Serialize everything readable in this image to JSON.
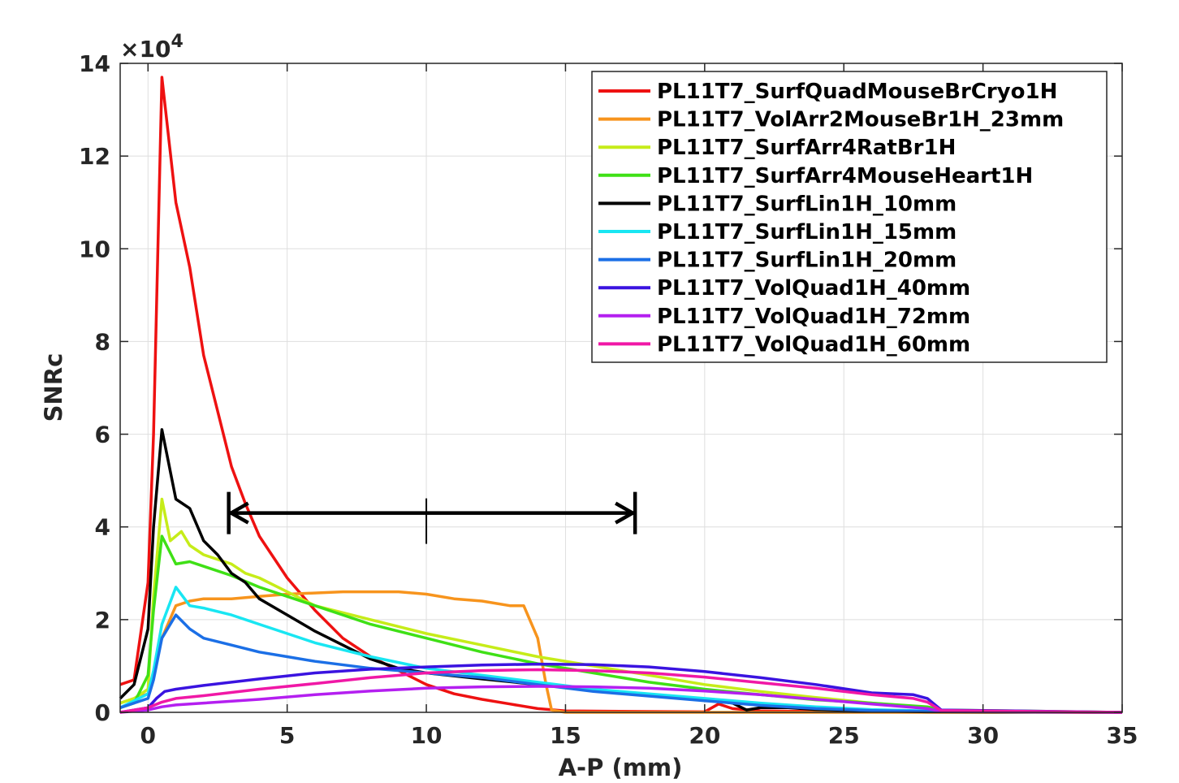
{
  "chart_data": {
    "type": "line",
    "xlabel": "A-P (mm)",
    "ylabel": "SNRc",
    "y_multiplier": "×10",
    "y_multiplier_exp": "4",
    "xlim": [
      -1,
      35
    ],
    "ylim": [
      0,
      14
    ],
    "xticks": [
      0,
      5,
      10,
      15,
      20,
      25,
      30,
      35
    ],
    "yticks": [
      0,
      2,
      4,
      6,
      8,
      10,
      12,
      14
    ],
    "grid": true,
    "legend_position": "top-right",
    "annotation": {
      "type": "double-arrow",
      "x_start": 2.9,
      "x_end": 17.5,
      "x_mid": 10,
      "y": 4.3
    },
    "series": [
      {
        "name": "PL11T7_SurfQuadMouseBrCryo1H",
        "color": "#ee1111",
        "x": [
          -1,
          -0.5,
          0,
          0.2,
          0.5,
          1,
          1.5,
          2,
          2.5,
          3,
          3.5,
          4,
          5,
          6,
          7,
          8,
          9,
          10,
          11,
          12,
          13,
          14,
          15,
          20,
          20.5,
          21,
          22,
          25,
          28,
          35
        ],
        "y": [
          0.6,
          0.7,
          2.8,
          6,
          13.7,
          11,
          9.6,
          7.7,
          6.5,
          5.3,
          4.5,
          3.8,
          2.9,
          2.2,
          1.6,
          1.2,
          0.9,
          0.6,
          0.4,
          0.28,
          0.18,
          0.08,
          0.03,
          0.01,
          0.18,
          0.08,
          0.03,
          0.01,
          0.01,
          0.0
        ]
      },
      {
        "name": "PL11T7_VolArr2MouseBr1H_23mm",
        "color": "#f7941d",
        "x": [
          -1,
          0,
          0.5,
          1,
          1.5,
          2,
          3,
          4,
          5,
          7,
          9,
          10,
          11,
          12,
          13,
          13.5,
          14,
          14.3,
          14.5,
          15,
          20,
          35
        ],
        "y": [
          0.2,
          0.4,
          1.6,
          2.3,
          2.4,
          2.45,
          2.45,
          2.5,
          2.55,
          2.6,
          2.6,
          2.55,
          2.45,
          2.4,
          2.3,
          2.3,
          1.6,
          0.6,
          0.05,
          0.0,
          0.0,
          0.0
        ]
      },
      {
        "name": "PL11T7_SurfArr4RatBr1H",
        "color": "#c6ec19",
        "x": [
          -1,
          -0.5,
          0,
          0.2,
          0.5,
          0.8,
          1.2,
          1.5,
          2,
          2.5,
          3,
          3.5,
          4,
          5,
          6,
          7,
          8,
          9,
          10,
          12,
          14,
          16,
          18,
          20,
          22,
          24,
          26,
          28,
          28.5,
          29,
          35
        ],
        "y": [
          0.2,
          0.3,
          0.5,
          2.5,
          4.6,
          3.7,
          3.9,
          3.6,
          3.4,
          3.3,
          3.2,
          3.0,
          2.9,
          2.6,
          2.3,
          2.15,
          2.0,
          1.85,
          1.7,
          1.45,
          1.2,
          1.0,
          0.8,
          0.6,
          0.45,
          0.32,
          0.2,
          0.1,
          0.05,
          0.02,
          0.0
        ]
      },
      {
        "name": "PL11T7_SurfArr4MouseHeart1H",
        "color": "#3fe016",
        "x": [
          -1,
          -0.5,
          0,
          0.2,
          0.5,
          1,
          1.5,
          2,
          3,
          4,
          5,
          6,
          7,
          8,
          10,
          12,
          14,
          16,
          18,
          20,
          22,
          24,
          26,
          28,
          28.5,
          35
        ],
        "y": [
          0.1,
          0.2,
          0.8,
          2.2,
          3.8,
          3.2,
          3.25,
          3.15,
          2.95,
          2.7,
          2.5,
          2.3,
          2.1,
          1.9,
          1.6,
          1.3,
          1.05,
          0.85,
          0.65,
          0.5,
          0.38,
          0.27,
          0.2,
          0.12,
          0.05,
          0.0
        ]
      },
      {
        "name": "PL11T7_SurfLin1H_10mm",
        "color": "#000000",
        "x": [
          -1,
          -0.5,
          0,
          0.2,
          0.5,
          1,
          1.5,
          2,
          2.5,
          3,
          3.5,
          4,
          5,
          6,
          7,
          8,
          9,
          10,
          12,
          14,
          16,
          18,
          20,
          21,
          21.5,
          22,
          23,
          24,
          26,
          28,
          35
        ],
        "y": [
          0.3,
          0.6,
          1.8,
          4.0,
          6.1,
          4.6,
          4.4,
          3.7,
          3.4,
          3.0,
          2.8,
          2.45,
          2.1,
          1.75,
          1.45,
          1.15,
          0.95,
          0.85,
          0.72,
          0.6,
          0.48,
          0.38,
          0.28,
          0.2,
          0.05,
          0.1,
          0.1,
          0.06,
          0.03,
          0.01,
          0.0
        ]
      },
      {
        "name": "PL11T7_SurfLin1H_15mm",
        "color": "#19e6f2",
        "x": [
          -1,
          0,
          0.2,
          0.5,
          1,
          1.5,
          2,
          3,
          4,
          5,
          6,
          8,
          10,
          12,
          14,
          16,
          18,
          20,
          22,
          24,
          26,
          28,
          35
        ],
        "y": [
          0.1,
          0.4,
          0.9,
          1.9,
          2.7,
          2.3,
          2.25,
          2.1,
          1.9,
          1.7,
          1.5,
          1.2,
          0.95,
          0.8,
          0.65,
          0.5,
          0.4,
          0.3,
          0.2,
          0.12,
          0.06,
          0.03,
          0.0
        ]
      },
      {
        "name": "PL11T7_SurfLin1H_20mm",
        "color": "#1b6fe6",
        "x": [
          -1,
          0,
          0.2,
          0.5,
          1,
          1.5,
          2,
          3,
          4,
          5,
          6,
          8,
          10,
          12,
          14,
          16,
          18,
          20,
          22,
          24,
          26,
          28,
          35
        ],
        "y": [
          0.1,
          0.3,
          0.7,
          1.6,
          2.1,
          1.8,
          1.6,
          1.45,
          1.3,
          1.2,
          1.1,
          0.95,
          0.85,
          0.75,
          0.6,
          0.45,
          0.35,
          0.25,
          0.15,
          0.08,
          0.04,
          0.02,
          0.0
        ]
      },
      {
        "name": "PL11T7_VolQuad1H_40mm",
        "color": "#3a13e0",
        "x": [
          -1,
          0,
          0.3,
          0.6,
          1,
          2,
          4,
          6,
          8,
          10,
          12,
          14,
          16,
          18,
          20,
          22,
          24,
          26,
          27.5,
          28,
          28.5,
          35
        ],
        "y": [
          0.0,
          0.1,
          0.3,
          0.45,
          0.5,
          0.58,
          0.72,
          0.85,
          0.93,
          0.98,
          1.02,
          1.04,
          1.03,
          0.98,
          0.88,
          0.75,
          0.6,
          0.42,
          0.38,
          0.3,
          0.05,
          0.0
        ]
      },
      {
        "name": "PL11T7_VolQuad1H_72mm",
        "color": "#b41ff0",
        "x": [
          -1,
          0,
          0.5,
          1,
          2,
          4,
          6,
          8,
          10,
          12,
          14,
          16,
          18,
          20,
          22,
          24,
          26,
          28,
          28.5,
          35
        ],
        "y": [
          0.0,
          0.05,
          0.12,
          0.16,
          0.2,
          0.28,
          0.38,
          0.46,
          0.52,
          0.55,
          0.56,
          0.55,
          0.52,
          0.46,
          0.38,
          0.28,
          0.18,
          0.08,
          0.02,
          0.0
        ]
      },
      {
        "name": "PL11T7_VolQuad1H_60mm",
        "color": "#f018a6",
        "x": [
          -1,
          0,
          0.5,
          1,
          2,
          4,
          6,
          8,
          10,
          12,
          14,
          16,
          18,
          20,
          22,
          24,
          26,
          27.5,
          28,
          28.5,
          35
        ],
        "y": [
          0.0,
          0.1,
          0.22,
          0.3,
          0.36,
          0.5,
          0.62,
          0.75,
          0.85,
          0.9,
          0.92,
          0.9,
          0.85,
          0.76,
          0.64,
          0.52,
          0.38,
          0.3,
          0.22,
          0.04,
          0.0
        ]
      }
    ]
  }
}
